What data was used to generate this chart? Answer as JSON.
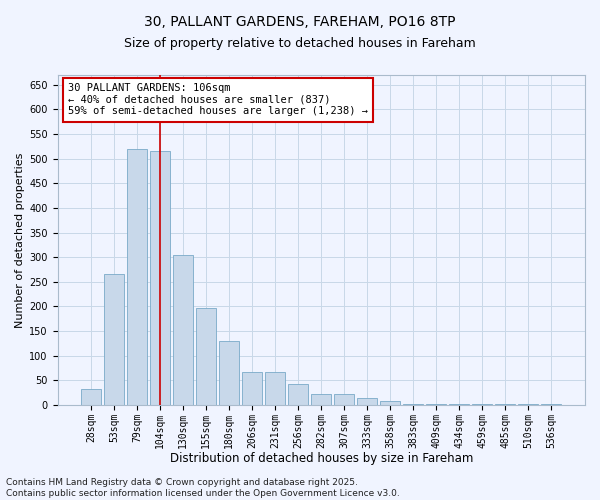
{
  "title_line1": "30, PALLANT GARDENS, FAREHAM, PO16 8TP",
  "title_line2": "Size of property relative to detached houses in Fareham",
  "xlabel": "Distribution of detached houses by size in Fareham",
  "ylabel": "Number of detached properties",
  "categories": [
    "28sqm",
    "53sqm",
    "79sqm",
    "104sqm",
    "130sqm",
    "155sqm",
    "180sqm",
    "206sqm",
    "231sqm",
    "256sqm",
    "282sqm",
    "307sqm",
    "333sqm",
    "358sqm",
    "383sqm",
    "409sqm",
    "434sqm",
    "459sqm",
    "485sqm",
    "510sqm",
    "536sqm"
  ],
  "values": [
    32,
    265,
    520,
    515,
    305,
    197,
    130,
    66,
    66,
    42,
    23,
    23,
    14,
    8,
    2,
    2,
    2,
    1,
    1,
    1,
    1
  ],
  "bar_color": "#c8d8ea",
  "bar_edge_color": "#7aaac8",
  "grid_color": "#c8d8e8",
  "vline_x_index": 3,
  "vline_color": "#cc0000",
  "annotation_text": "30 PALLANT GARDENS: 106sqm\n← 40% of detached houses are smaller (837)\n59% of semi-detached houses are larger (1,238) →",
  "annotation_box_color": "#ffffff",
  "annotation_box_edge_color": "#cc0000",
  "annotation_fontsize": 7.5,
  "ylim": [
    0,
    670
  ],
  "yticks": [
    0,
    50,
    100,
    150,
    200,
    250,
    300,
    350,
    400,
    450,
    500,
    550,
    600,
    650
  ],
  "title_fontsize": 10,
  "subtitle_fontsize": 9,
  "xlabel_fontsize": 8.5,
  "ylabel_fontsize": 8,
  "tick_fontsize": 7,
  "footer_text": "Contains HM Land Registry data © Crown copyright and database right 2025.\nContains public sector information licensed under the Open Government Licence v3.0.",
  "footer_fontsize": 6.5,
  "background_color": "#f0f4ff"
}
